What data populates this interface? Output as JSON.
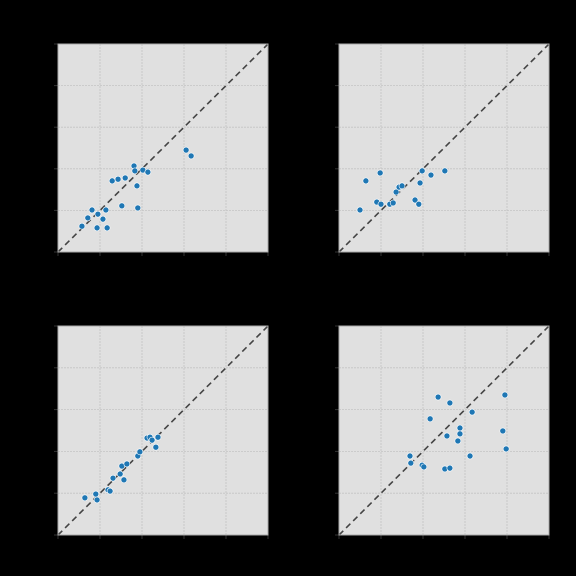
{
  "chart_data": [
    {
      "type": "scatter",
      "color": "#1f77b4",
      "xlim": [
        0,
        5
      ],
      "ylim": [
        0,
        5
      ],
      "xticks": [
        0,
        1,
        2,
        3,
        4,
        5
      ],
      "yticks": [
        0,
        1,
        2,
        3,
        4,
        5
      ],
      "grid": true,
      "diagonal": true,
      "x": [
        0.57,
        0.71,
        0.81,
        0.93,
        0.95,
        1.07,
        1.14,
        1.17,
        1.29,
        1.43,
        1.52,
        1.6,
        1.81,
        1.83,
        1.88,
        1.9,
        2.02,
        2.14,
        3.05,
        3.17
      ],
      "values": [
        0.62,
        0.82,
        1.01,
        0.58,
        0.91,
        0.79,
        1.01,
        0.58,
        1.71,
        1.75,
        1.11,
        1.78,
        2.07,
        1.95,
        1.59,
        1.06,
        1.97,
        1.92,
        2.45,
        2.31
      ]
    },
    {
      "type": "scatter",
      "color": "#1f77b4",
      "xlim": [
        0,
        5
      ],
      "ylim": [
        0,
        5
      ],
      "xticks": [
        0,
        1,
        2,
        3,
        4,
        5
      ],
      "yticks": [
        0,
        1,
        2,
        3,
        4,
        5
      ],
      "grid": true,
      "diagonal": true,
      "x": [
        0.5,
        0.64,
        0.9,
        0.98,
        1.0,
        1.21,
        1.29,
        1.36,
        1.43,
        1.5,
        1.81,
        1.9,
        1.93,
        1.98,
        2.19,
        2.52
      ],
      "values": [
        1.01,
        1.71,
        1.2,
        1.9,
        1.15,
        1.15,
        1.18,
        1.44,
        1.56,
        1.59,
        1.25,
        1.15,
        1.66,
        1.95,
        1.85,
        1.95
      ]
    },
    {
      "type": "scatter",
      "color": "#1f77b4",
      "xlim": [
        0,
        5
      ],
      "ylim": [
        0,
        5
      ],
      "xticks": [
        0,
        1,
        2,
        3,
        4,
        5
      ],
      "yticks": [
        0,
        1,
        2,
        3,
        4,
        5
      ],
      "grid": true,
      "diagonal": true,
      "x": [
        0.64,
        0.9,
        0.93,
        1.19,
        1.24,
        1.31,
        1.48,
        1.52,
        1.57,
        1.64,
        1.9,
        1.95,
        2.12,
        2.19,
        2.24,
        2.33,
        2.38
      ],
      "values": [
        0.89,
        0.98,
        0.84,
        1.08,
        1.05,
        1.36,
        1.46,
        1.65,
        1.32,
        1.7,
        1.89,
        1.99,
        2.32,
        2.34,
        2.27,
        2.1,
        2.34
      ]
    },
    {
      "type": "scatter",
      "color": "#1f77b4",
      "xlim": [
        0,
        5
      ],
      "ylim": [
        0,
        5
      ],
      "xticks": [
        0,
        1,
        2,
        3,
        4,
        5
      ],
      "yticks": [
        0,
        1,
        2,
        3,
        4,
        5
      ],
      "grid": true,
      "diagonal": true,
      "x": [
        1.69,
        1.71,
        1.98,
        2.02,
        2.17,
        2.36,
        2.52,
        2.57,
        2.64,
        2.64,
        2.83,
        2.88,
        2.88,
        3.12,
        3.17,
        3.9,
        3.95,
        3.98
      ],
      "values": [
        1.89,
        1.72,
        1.67,
        1.63,
        2.78,
        3.3,
        1.58,
        2.37,
        1.6,
        3.16,
        2.25,
        2.56,
        2.42,
        1.89,
        2.94,
        2.49,
        3.35,
        2.06
      ]
    }
  ]
}
